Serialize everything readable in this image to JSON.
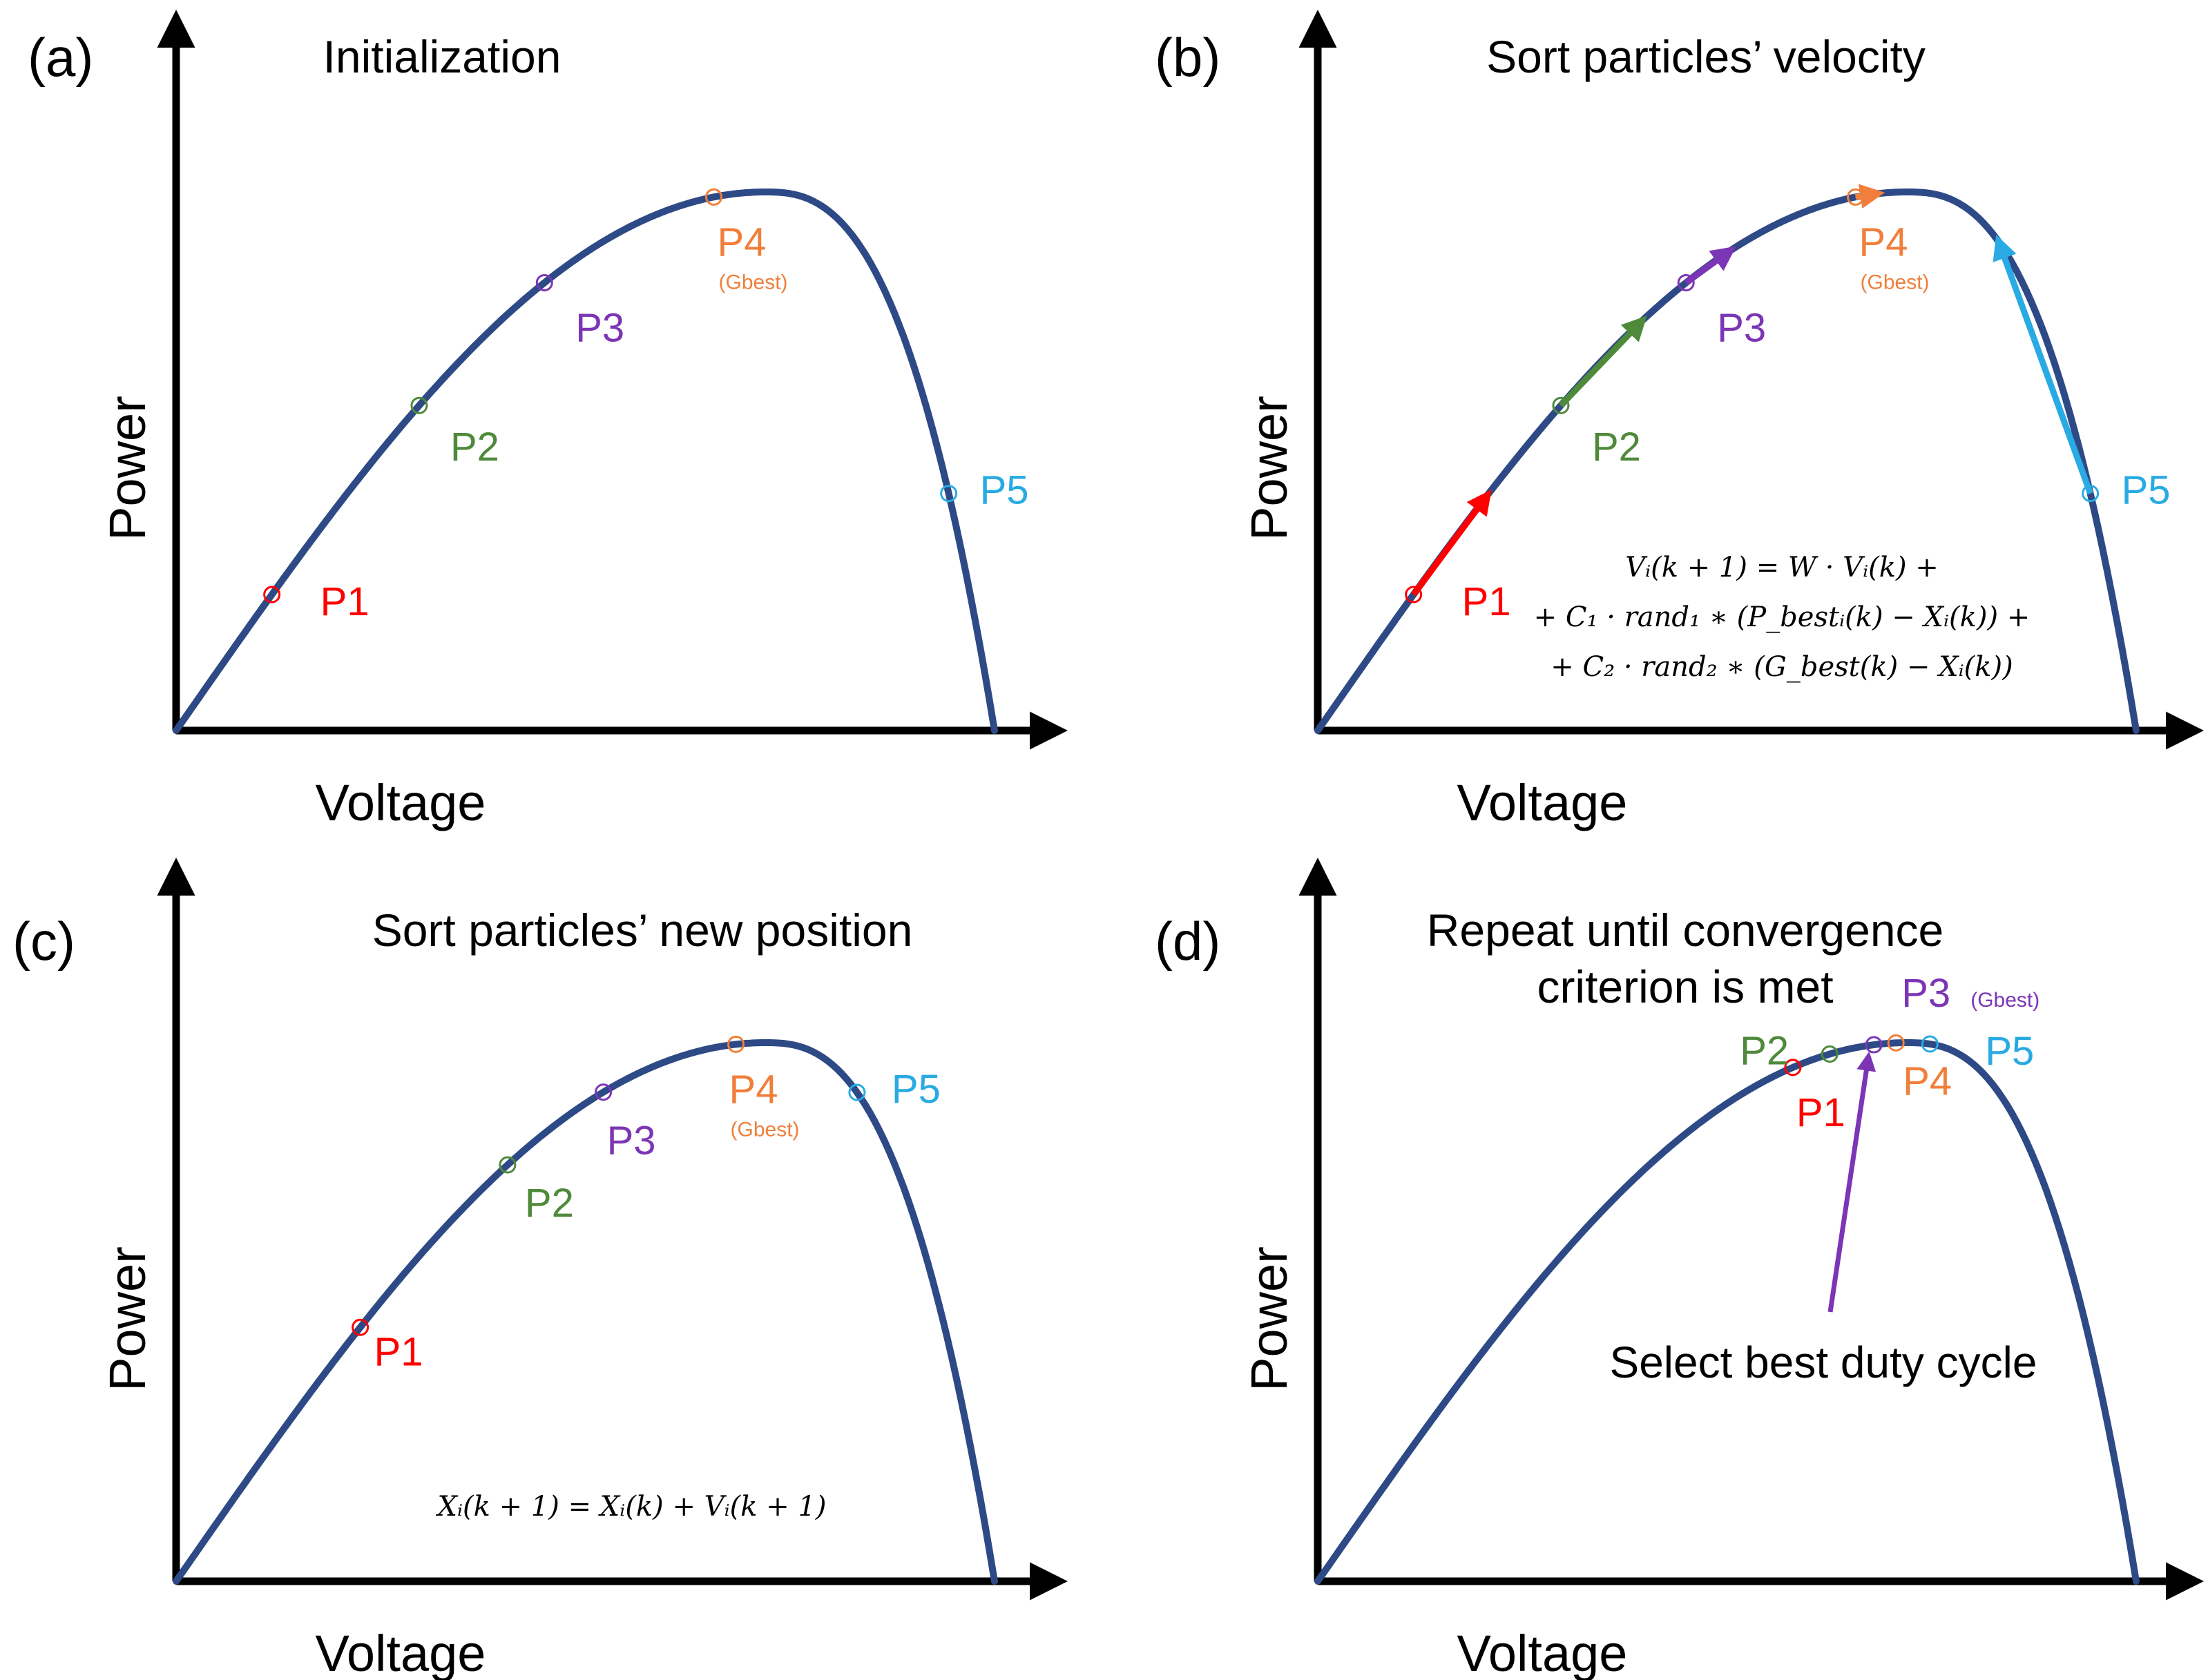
{
  "figure": {
    "panels": [
      {
        "id": "a",
        "label": "(a)",
        "title_lines": [
          "Initialization"
        ],
        "xlabel": "Voltage",
        "ylabel": "Power",
        "particles": [
          {
            "name": "P1",
            "color": "#ff0000",
            "u": 0.13,
            "gbest": false
          },
          {
            "name": "P2",
            "color": "#4e8a3a",
            "u": 0.33,
            "gbest": false
          },
          {
            "name": "P3",
            "color": "#7b35b5",
            "u": 0.5,
            "gbest": false
          },
          {
            "name": "P4",
            "color": "#f07f3b",
            "u": 0.73,
            "gbest": true,
            "gbest_label": "(Gbest)"
          },
          {
            "name": "P5",
            "color": "#29aae2",
            "u": 0.96,
            "gbest": false
          }
        ],
        "equation_lines": []
      },
      {
        "id": "b",
        "label": "(b)",
        "title_lines": [
          "Sort particles’ velocity"
        ],
        "xlabel": "Voltage",
        "ylabel": "Power",
        "particles": [
          {
            "name": "P1",
            "color": "#ff0000",
            "u": 0.13,
            "gbest": false,
            "arrow_to_u": 0.23
          },
          {
            "name": "P2",
            "color": "#4e8a3a",
            "u": 0.33,
            "gbest": false,
            "arrow_to_u": 0.44
          },
          {
            "name": "P3",
            "color": "#7b35b5",
            "u": 0.5,
            "gbest": false,
            "arrow_to_u": 0.56
          },
          {
            "name": "P4",
            "color": "#f07f3b",
            "u": 0.73,
            "gbest": true,
            "gbest_label": "(Gbest)",
            "arrow_to_u": 0.76
          },
          {
            "name": "P5",
            "color": "#29aae2",
            "u": 0.96,
            "gbest": false,
            "arrow_to_u": 0.88
          }
        ],
        "equation_lines": [
          "Vᵢ(k + 1) = W · Vᵢ(k) +",
          "+ C₁ · rand₁ ∗ (P_bestᵢ(k) − Xᵢ(k)) +",
          "+ C₂ · rand₂ ∗ (G_best(k) − Xᵢ(k))"
        ]
      },
      {
        "id": "c",
        "label": "(c)",
        "title_lines": [
          "Sort particles’ new position"
        ],
        "xlabel": "Voltage",
        "ylabel": "Power",
        "particles": [
          {
            "name": "P1",
            "color": "#ff0000",
            "u": 0.25,
            "gbest": false
          },
          {
            "name": "P2",
            "color": "#4e8a3a",
            "u": 0.45,
            "gbest": false
          },
          {
            "name": "P3",
            "color": "#7b35b5",
            "u": 0.58,
            "gbest": false
          },
          {
            "name": "P4",
            "color": "#f07f3b",
            "u": 0.76,
            "gbest": true,
            "gbest_label": "(Gbest)"
          },
          {
            "name": "P5",
            "color": "#29aae2",
            "u": 0.88,
            "gbest": false
          }
        ],
        "equation_lines": [
          "Xᵢ(k + 1)  =  Xᵢ(k)  +  Vᵢ(k + 1)"
        ]
      },
      {
        "id": "d",
        "label": "(d)",
        "title_lines": [
          "Repeat until convergence",
          "criterion is met"
        ],
        "xlabel": "Voltage",
        "ylabel": "Power",
        "particles": [
          {
            "name": "P1",
            "color": "#ff0000",
            "u": 0.645,
            "gbest": false
          },
          {
            "name": "P2",
            "color": "#4e8a3a",
            "u": 0.695,
            "gbest": false
          },
          {
            "name": "P3",
            "color": "#7b35b5",
            "u": 0.755,
            "gbest": true,
            "gbest_label": "(Gbest)"
          },
          {
            "name": "P4",
            "color": "#f07f3b",
            "u": 0.785,
            "gbest": false
          },
          {
            "name": "P5",
            "color": "#29aae2",
            "u": 0.82,
            "gbest": false
          }
        ],
        "equation_lines": [],
        "annotation": {
          "text": "Select best duty  cycle",
          "color": "#7b35b5"
        }
      }
    ],
    "colors": {
      "curve": "#2e4a86",
      "axis": "#000000",
      "text": "#000000"
    }
  }
}
